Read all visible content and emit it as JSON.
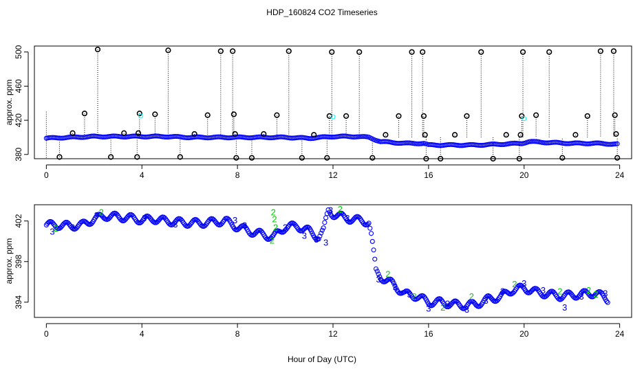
{
  "title": "HDP_160824  CO2 Timeseries",
  "xlabel": "Hour of Day (UTC)",
  "colors": {
    "main": "#0000ff",
    "outlier": "#000000",
    "flag": "#00ffff",
    "series2": "#00cc00",
    "series3": "#0000cc",
    "axis": "#000000"
  },
  "chart_data": [
    {
      "type": "scatter",
      "panel": "top",
      "ylabel": "approx. ppm",
      "xlim": [
        -0.5,
        24.5
      ],
      "ylim": [
        375,
        507
      ],
      "xticks": [
        0,
        4,
        8,
        12,
        16,
        20,
        24
      ],
      "yticks": [
        380,
        420,
        460,
        500
      ],
      "series": [
        {
          "name": "main",
          "marker": "o",
          "color": "#0000ff",
          "x": [
            0,
            1,
            2,
            3,
            4,
            5,
            6,
            7,
            8,
            9,
            10,
            11,
            12,
            13,
            13.5,
            14,
            15,
            15.8,
            16,
            17,
            18,
            19,
            19.9,
            20.2,
            21,
            22,
            23,
            23.9
          ],
          "y": [
            399,
            400,
            401,
            401,
            401,
            401,
            400,
            400,
            400,
            400,
            400,
            399,
            401,
            401,
            400,
            395,
            393,
            393,
            391,
            391,
            391,
            392,
            393,
            395,
            394,
            393,
            393,
            392
          ]
        },
        {
          "name": "outliers",
          "marker": "o",
          "color": "#000000",
          "x": [
            0.55,
            1.1,
            1.6,
            2.15,
            2.7,
            3.25,
            3.8,
            3.85,
            3.9,
            4.55,
            5.1,
            5.6,
            6.2,
            6.75,
            7.3,
            7.8,
            7.85,
            7.9,
            7.95,
            8.6,
            9.1,
            9.65,
            10.15,
            10.7,
            11.2,
            11.75,
            11.85,
            11.95,
            12.55,
            13.1,
            13.65,
            14.2,
            14.75,
            15.3,
            15.75,
            15.8,
            15.85,
            15.9,
            16.5,
            17.1,
            17.6,
            18.2,
            18.7,
            19.25,
            19.8,
            19.85,
            19.9,
            19.95,
            20.5,
            21.05,
            21.6,
            22.15,
            22.65,
            23.2,
            23.75,
            23.8,
            23.85,
            23.9
          ],
          "y": [
            377,
            405,
            428,
            503,
            377,
            405,
            377,
            405,
            428,
            427,
            502,
            377,
            404,
            426,
            501,
            501,
            427,
            404,
            376,
            376,
            404,
            426,
            501,
            376,
            403,
            376,
            425,
            500,
            425,
            500,
            376,
            403,
            425,
            500,
            500,
            425,
            403,
            375,
            375,
            403,
            425,
            500,
            375,
            403,
            375,
            403,
            425,
            500,
            426,
            500,
            376,
            403,
            425,
            501,
            501,
            426,
            404,
            376
          ]
        },
        {
          "name": "flagged",
          "marker": "o",
          "color": "#00ffff",
          "x": [
            3.95,
            12.0,
            20.0
          ],
          "y": [
            425,
            424,
            422
          ]
        }
      ]
    },
    {
      "type": "scatter",
      "panel": "bottom",
      "ylabel": "approx. ppm",
      "xlim": [
        -0.5,
        24.5
      ],
      "ylim": [
        392.5,
        403.6
      ],
      "xticks": [
        0,
        4,
        8,
        12,
        16,
        20,
        24
      ],
      "yticks": [
        394,
        398,
        402
      ],
      "series": [
        {
          "name": "profile",
          "marker": "o",
          "color": "#0000ff",
          "x": [
            0,
            0.5,
            1,
            1.5,
            2,
            2.5,
            3,
            3.5,
            4,
            4.5,
            5,
            5.5,
            6,
            6.5,
            7,
            7.5,
            8,
            8.5,
            9,
            9.5,
            10,
            10.5,
            11,
            11.4,
            11.6,
            11.8,
            12,
            12.5,
            13,
            13.5,
            13.6,
            13.8,
            14,
            14.5,
            15,
            15.5,
            16,
            16.5,
            17,
            17.5,
            18,
            18.5,
            19,
            19.5,
            20,
            20.5,
            21,
            21.5,
            22,
            22.5,
            23,
            23.5
          ],
          "y": [
            401.6,
            401.6,
            401.5,
            401.6,
            402.2,
            402.5,
            402.4,
            402.3,
            402.1,
            402.2,
            402.0,
            401.9,
            401.8,
            401.8,
            401.9,
            402.0,
            401.4,
            401.0,
            400.7,
            400.4,
            401.4,
            401.5,
            401.0,
            400.4,
            401.0,
            403.0,
            402.7,
            402.3,
            402.1,
            401.9,
            400.6,
            397.0,
            396.5,
            395.8,
            394.8,
            394.6,
            394.0,
            394.0,
            393.8,
            393.7,
            393.8,
            394.3,
            394.5,
            395.2,
            395.4,
            395.0,
            394.8,
            394.6,
            394.7,
            394.8,
            394.9,
            394.3
          ]
        },
        {
          "name": "labels-2",
          "marker": "2",
          "color": "#00cc00",
          "x": [
            0.4,
            2.3,
            9.5,
            9.55,
            9.6,
            9.45,
            12.3,
            14.3,
            15.4,
            16.6,
            17.8,
            19.6,
            21.5,
            22.7,
            23.0
          ],
          "y": [
            401.3,
            402.9,
            402.9,
            402.2,
            401.4,
            400.1,
            403.2,
            396.8,
            394.6,
            393.5,
            394.6,
            395.8,
            395.1,
            395.2,
            394.8
          ]
        },
        {
          "name": "labels-3",
          "marker": "3",
          "color": "#0000cc",
          "x": [
            0.25,
            1.1,
            2.1,
            4.1,
            5.4,
            7.9,
            8.3,
            10.0,
            10.8,
            11.3,
            11.7,
            11.9,
            12.6,
            13.9,
            14.6,
            15.2,
            16.0,
            16.8,
            17.6,
            18.4,
            19.1,
            20.0,
            20.8,
            21.7,
            22.4,
            23.4
          ],
          "y": [
            401.0,
            401.4,
            402.6,
            402.3,
            401.7,
            402.1,
            401.6,
            401.4,
            400.6,
            400.2,
            399.9,
            403.1,
            402.3,
            396.3,
            395.5,
            394.8,
            393.4,
            393.9,
            393.3,
            394.2,
            395.1,
            395.9,
            395.2,
            393.5,
            394.6,
            394.9
          ]
        }
      ]
    }
  ]
}
